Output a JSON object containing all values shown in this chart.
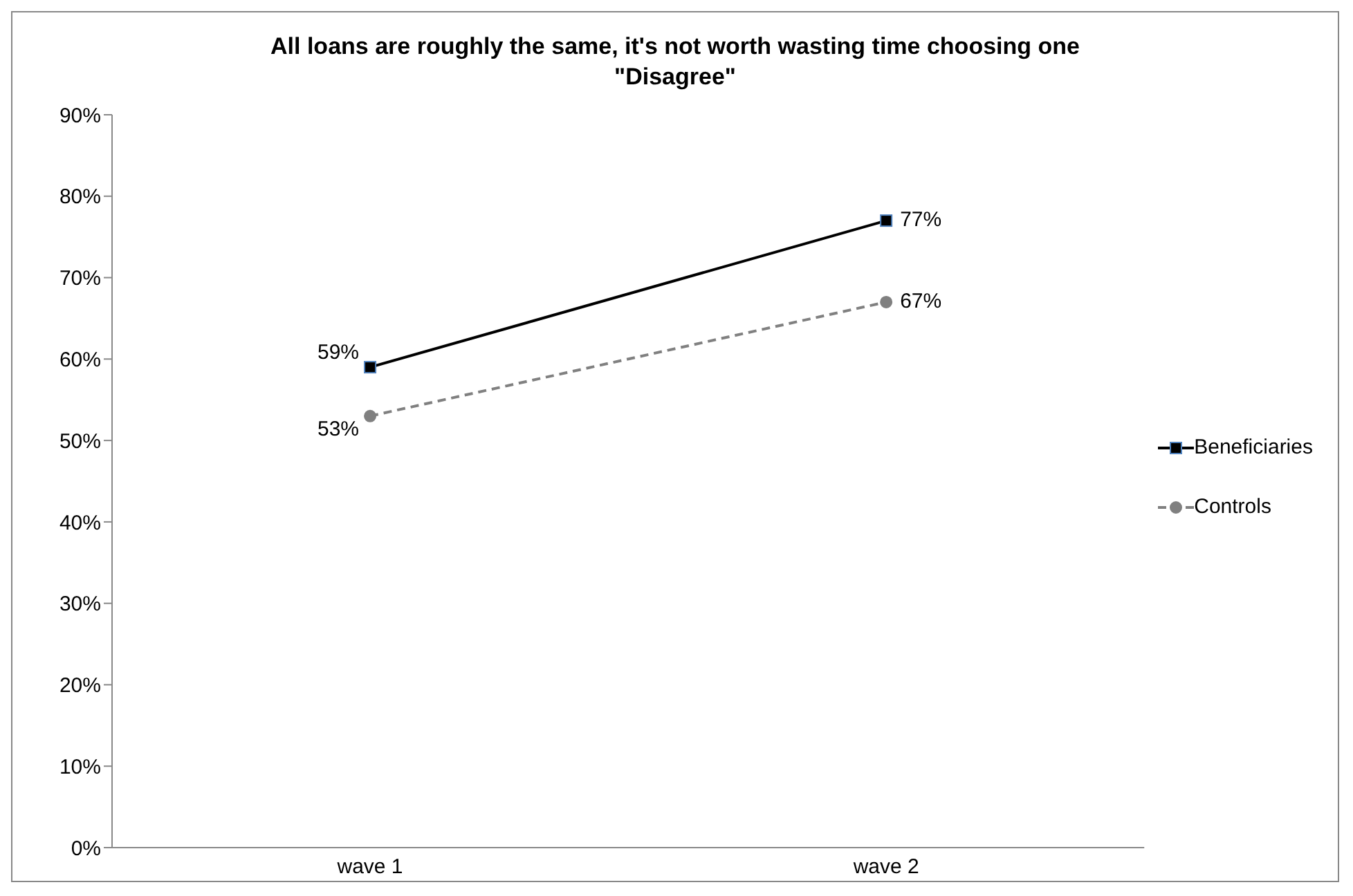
{
  "chart_data": {
    "type": "line",
    "title": "All loans are roughly the same, it's not worth wasting time choosing one\n\"Disagree\"",
    "categories": [
      "wave 1",
      "wave 2"
    ],
    "series": [
      {
        "name": "Beneficiaries",
        "color": "#000000",
        "values": [
          59,
          77
        ],
        "value_labels": [
          "59%",
          "77%"
        ],
        "marker": "square",
        "line_style": "solid"
      },
      {
        "name": "Controls",
        "color": "#808080",
        "values": [
          53,
          67
        ],
        "value_labels": [
          "53%",
          "67%"
        ],
        "marker": "circle",
        "line_style": "dashed"
      }
    ],
    "ylim": [
      0,
      90
    ],
    "yticks": [
      {
        "value": 0,
        "label": "0%"
      },
      {
        "value": 10,
        "label": "10%"
      },
      {
        "value": 20,
        "label": "20%"
      },
      {
        "value": 30,
        "label": "30%"
      },
      {
        "value": 40,
        "label": "40%"
      },
      {
        "value": 50,
        "label": "50%"
      },
      {
        "value": 60,
        "label": "60%"
      },
      {
        "value": 70,
        "label": "70%"
      },
      {
        "value": 80,
        "label": "80%"
      },
      {
        "value": 90,
        "label": "90%"
      }
    ],
    "grid": false,
    "legend": "right"
  }
}
